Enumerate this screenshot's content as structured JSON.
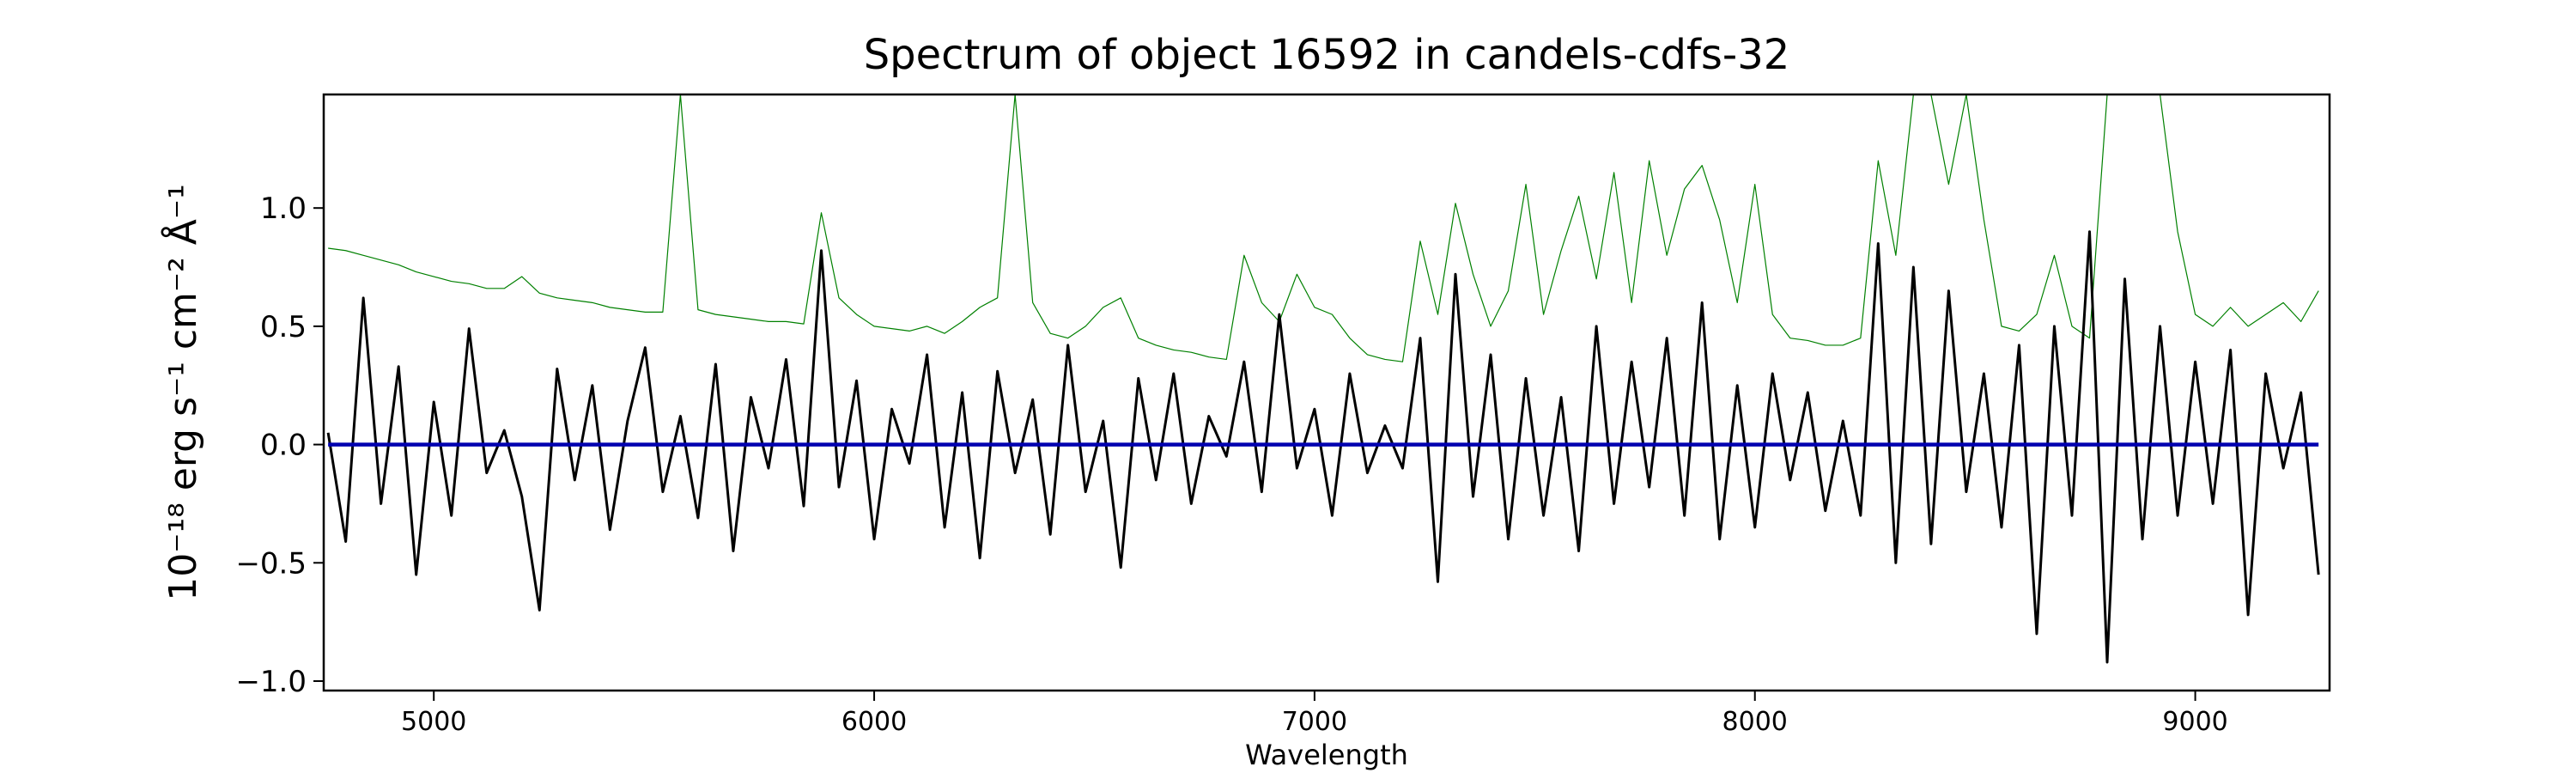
{
  "chart_data": {
    "type": "line",
    "title": "Spectrum of object 16592 in candels-cdfs-32",
    "x_label": "Wavelength",
    "y_label": "10⁻¹⁸ erg s⁻¹ cm⁻² Å⁻¹",
    "xlim": [
      4750,
      9305
    ],
    "ylim": [
      -1.04,
      1.48
    ],
    "xticks": [
      5000,
      6000,
      7000,
      8000,
      9000
    ],
    "yticks": [
      {
        "value": -1,
        "label": "−1.0"
      },
      {
        "value": -0.5,
        "label": "−0.5"
      },
      {
        "value": 0,
        "label": "0.0"
      },
      0.5,
      {
        "value": 1,
        "label": "1.0"
      }
    ],
    "x": [
      4760,
      4800,
      4840,
      4880,
      4920,
      4960,
      5000,
      5040,
      5080,
      5120,
      5160,
      5200,
      5240,
      5280,
      5320,
      5360,
      5400,
      5440,
      5480,
      5520,
      5560,
      5600,
      5640,
      5680,
      5720,
      5760,
      5800,
      5840,
      5880,
      5920,
      5960,
      6000,
      6040,
      6080,
      6120,
      6160,
      6200,
      6240,
      6280,
      6320,
      6360,
      6400,
      6440,
      6480,
      6520,
      6560,
      6600,
      6640,
      6680,
      6720,
      6760,
      6800,
      6840,
      6880,
      6920,
      6960,
      7000,
      7040,
      7080,
      7120,
      7160,
      7200,
      7240,
      7280,
      7320,
      7360,
      7400,
      7440,
      7480,
      7520,
      7560,
      7600,
      7640,
      7680,
      7720,
      7760,
      7800,
      7840,
      7880,
      7920,
      7960,
      8000,
      8040,
      8080,
      8120,
      8160,
      8200,
      8240,
      8280,
      8320,
      8360,
      8400,
      8440,
      8480,
      8520,
      8560,
      8600,
      8640,
      8680,
      8720,
      8760,
      8800,
      8840,
      8880,
      8920,
      8960,
      9000,
      9040,
      9080,
      9120,
      9160,
      9200,
      9240,
      9280
    ],
    "series": [
      {
        "color": "#008000",
        "width": 1.2,
        "values": [
          0.83,
          0.82,
          0.8,
          0.78,
          0.76,
          0.73,
          0.71,
          0.69,
          0.68,
          0.66,
          0.66,
          0.71,
          0.64,
          0.62,
          0.61,
          0.6,
          0.58,
          0.57,
          0.56,
          0.56,
          1.48,
          0.57,
          0.55,
          0.54,
          0.53,
          0.52,
          0.52,
          0.51,
          0.98,
          0.62,
          0.55,
          0.5,
          0.49,
          0.48,
          0.5,
          0.47,
          0.52,
          0.58,
          0.62,
          1.48,
          0.6,
          0.47,
          0.45,
          0.5,
          0.58,
          0.62,
          0.45,
          0.42,
          0.4,
          0.39,
          0.37,
          0.36,
          0.8,
          0.6,
          0.52,
          0.72,
          0.58,
          0.55,
          0.45,
          0.38,
          0.36,
          0.35,
          0.86,
          0.55,
          1.02,
          0.72,
          0.5,
          0.65,
          1.1,
          0.55,
          0.82,
          1.05,
          0.7,
          1.15,
          0.6,
          1.2,
          0.8,
          1.08,
          1.18,
          0.95,
          0.6,
          1.1,
          0.55,
          0.45,
          0.44,
          0.42,
          0.42,
          0.45,
          1.2,
          0.8,
          1.48,
          1.48,
          1.1,
          1.48,
          0.95,
          0.5,
          0.48,
          0.55,
          0.8,
          0.5,
          0.45,
          1.48,
          1.48,
          1.48,
          1.48,
          0.9,
          0.55,
          0.5,
          0.58,
          0.5,
          0.55,
          0.6,
          0.52,
          0.65
        ]
      },
      {
        "color": "#000000",
        "width": 3,
        "values": [
          0.05,
          -0.41,
          0.62,
          -0.25,
          0.33,
          -0.55,
          0.18,
          -0.3,
          0.49,
          -0.12,
          0.06,
          -0.22,
          -0.7,
          0.32,
          -0.15,
          0.25,
          -0.36,
          0.1,
          0.41,
          -0.2,
          0.12,
          -0.31,
          0.34,
          -0.45,
          0.2,
          -0.1,
          0.36,
          -0.26,
          0.82,
          -0.18,
          0.27,
          -0.4,
          0.15,
          -0.08,
          0.38,
          -0.35,
          0.22,
          -0.48,
          0.31,
          -0.12,
          0.19,
          -0.38,
          0.42,
          -0.2,
          0.1,
          -0.52,
          0.28,
          -0.15,
          0.3,
          -0.25,
          0.12,
          -0.05,
          0.35,
          -0.2,
          0.55,
          -0.1,
          0.15,
          -0.3,
          0.3,
          -0.12,
          0.08,
          -0.1,
          0.45,
          -0.58,
          0.72,
          -0.22,
          0.38,
          -0.4,
          0.28,
          -0.3,
          0.2,
          -0.45,
          0.5,
          -0.25,
          0.35,
          -0.18,
          0.45,
          -0.3,
          0.6,
          -0.4,
          0.25,
          -0.35,
          0.3,
          -0.15,
          0.22,
          -0.28,
          0.1,
          -0.3,
          0.85,
          -0.5,
          0.75,
          -0.42,
          0.65,
          -0.2,
          0.3,
          -0.35,
          0.42,
          -0.8,
          0.5,
          -0.3,
          0.9,
          -0.92,
          0.7,
          -0.4,
          0.5,
          -0.3,
          0.35,
          -0.25,
          0.4,
          -0.72,
          0.3,
          -0.1,
          0.22,
          -0.55
        ]
      },
      {
        "color": "#0000b0",
        "width": 4.5,
        "x": [
          4760,
          9280
        ],
        "values": [
          0,
          0
        ]
      }
    ]
  }
}
